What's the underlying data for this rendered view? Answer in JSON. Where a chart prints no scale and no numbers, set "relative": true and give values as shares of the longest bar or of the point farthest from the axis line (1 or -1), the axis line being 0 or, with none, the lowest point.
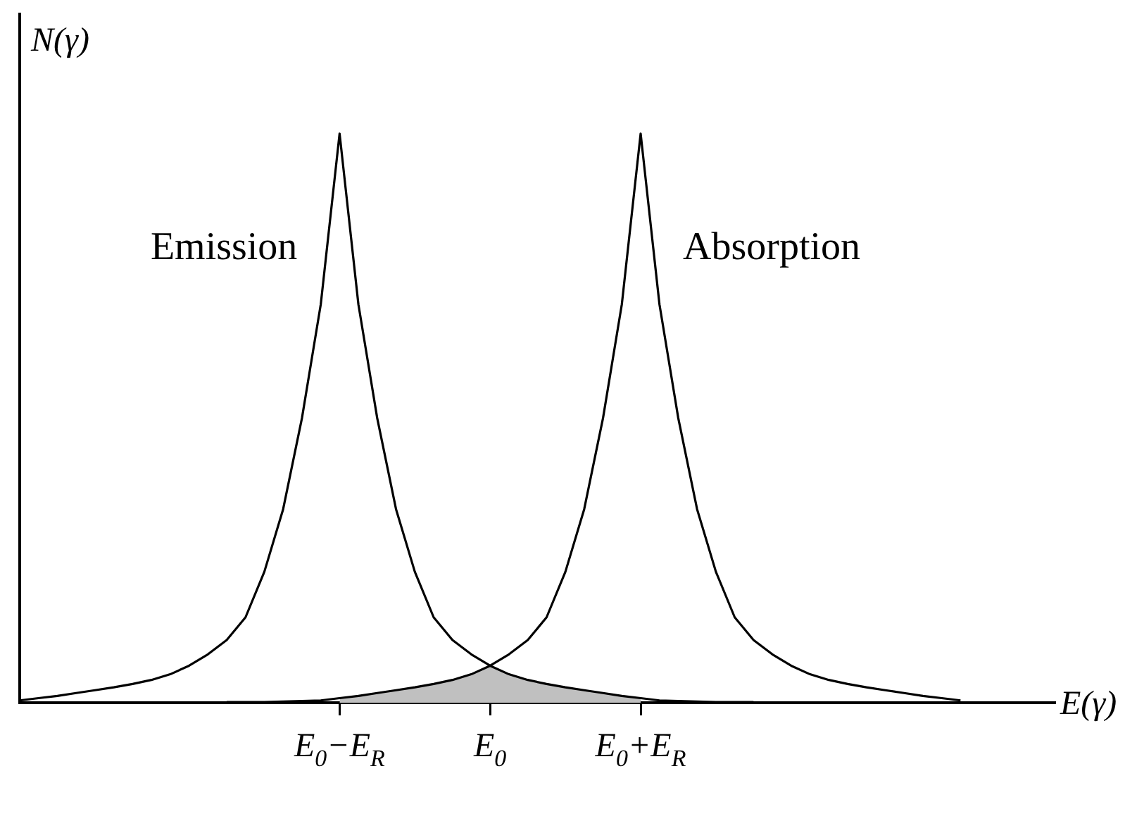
{
  "chart_data": {
    "type": "line",
    "relative": true,
    "xlabel": "E(γ)",
    "ylabel": "N(γ)",
    "categories": [
      null,
      null,
      null,
      null,
      null,
      null,
      null,
      null,
      null,
      null,
      null,
      null,
      null,
      null,
      null,
      null,
      null,
      "E$_{0}$−E$_{R}$",
      null,
      null,
      null,
      null,
      null,
      null,
      null,
      "E$_{0}$",
      null,
      null,
      null,
      null,
      null,
      null,
      null,
      "E$_{0}$+E$_{R}$",
      null,
      null,
      null,
      null,
      null,
      null,
      null,
      null,
      null,
      null,
      null,
      null,
      null,
      null,
      null,
      null,
      null,
      null,
      null,
      null,
      null,
      null
    ],
    "series": [
      {
        "name": "Emission",
        "color": "#000000",
        "values": [
          0.004,
          0.008,
          0.012,
          0.017,
          0.022,
          0.027,
          0.033,
          0.04,
          0.05,
          0.065,
          0.085,
          0.11,
          0.15,
          0.23,
          0.34,
          0.5,
          0.7,
          1,
          0.7,
          0.5,
          0.34,
          0.23,
          0.15,
          0.11,
          0.085,
          0.065,
          0.05,
          0.04,
          0.033,
          0.027,
          0.022,
          0.017,
          0.012,
          0.008,
          0.004,
          0.003,
          0.002,
          0.001,
          0.001,
          0.001,
          null,
          null,
          null,
          null,
          null,
          null,
          null,
          null,
          null,
          null,
          null,
          null,
          null,
          null,
          null,
          null
        ]
      },
      {
        "name": "Absorption",
        "color": "#000000",
        "values": [
          null,
          null,
          null,
          null,
          null,
          null,
          null,
          null,
          null,
          null,
          null,
          0.001,
          0.001,
          0.001,
          0.002,
          0.003,
          0.004,
          0.008,
          0.012,
          0.017,
          0.022,
          0.027,
          0.033,
          0.04,
          0.05,
          0.065,
          0.085,
          0.11,
          0.15,
          0.23,
          0.34,
          0.5,
          0.7,
          1,
          0.7,
          0.5,
          0.34,
          0.23,
          0.15,
          0.11,
          0.085,
          0.065,
          0.05,
          0.04,
          0.033,
          0.027,
          0.022,
          0.017,
          0.012,
          0.008,
          0.004,
          null,
          null,
          null,
          null,
          null
        ]
      },
      {
        "type": "area",
        "color": "#c0c0c0",
        "values": [
          null,
          null,
          null,
          null,
          null,
          null,
          null,
          null,
          null,
          null,
          null,
          null,
          null,
          null,
          null,
          null,
          null,
          0.008,
          0.012,
          0.017,
          0.022,
          0.027,
          0.033,
          0.04,
          0.05,
          0.065,
          0.05,
          0.04,
          0.033,
          0.027,
          0.022,
          0.017,
          0.012,
          0.008,
          null,
          null,
          null,
          null,
          null,
          null,
          null,
          null,
          null,
          null,
          null,
          null,
          null,
          null,
          null,
          null,
          null,
          null,
          null,
          null,
          null,
          null
        ]
      }
    ],
    "legend": false,
    "grid": false,
    "marker": "none",
    "line_style": "solid"
  }
}
